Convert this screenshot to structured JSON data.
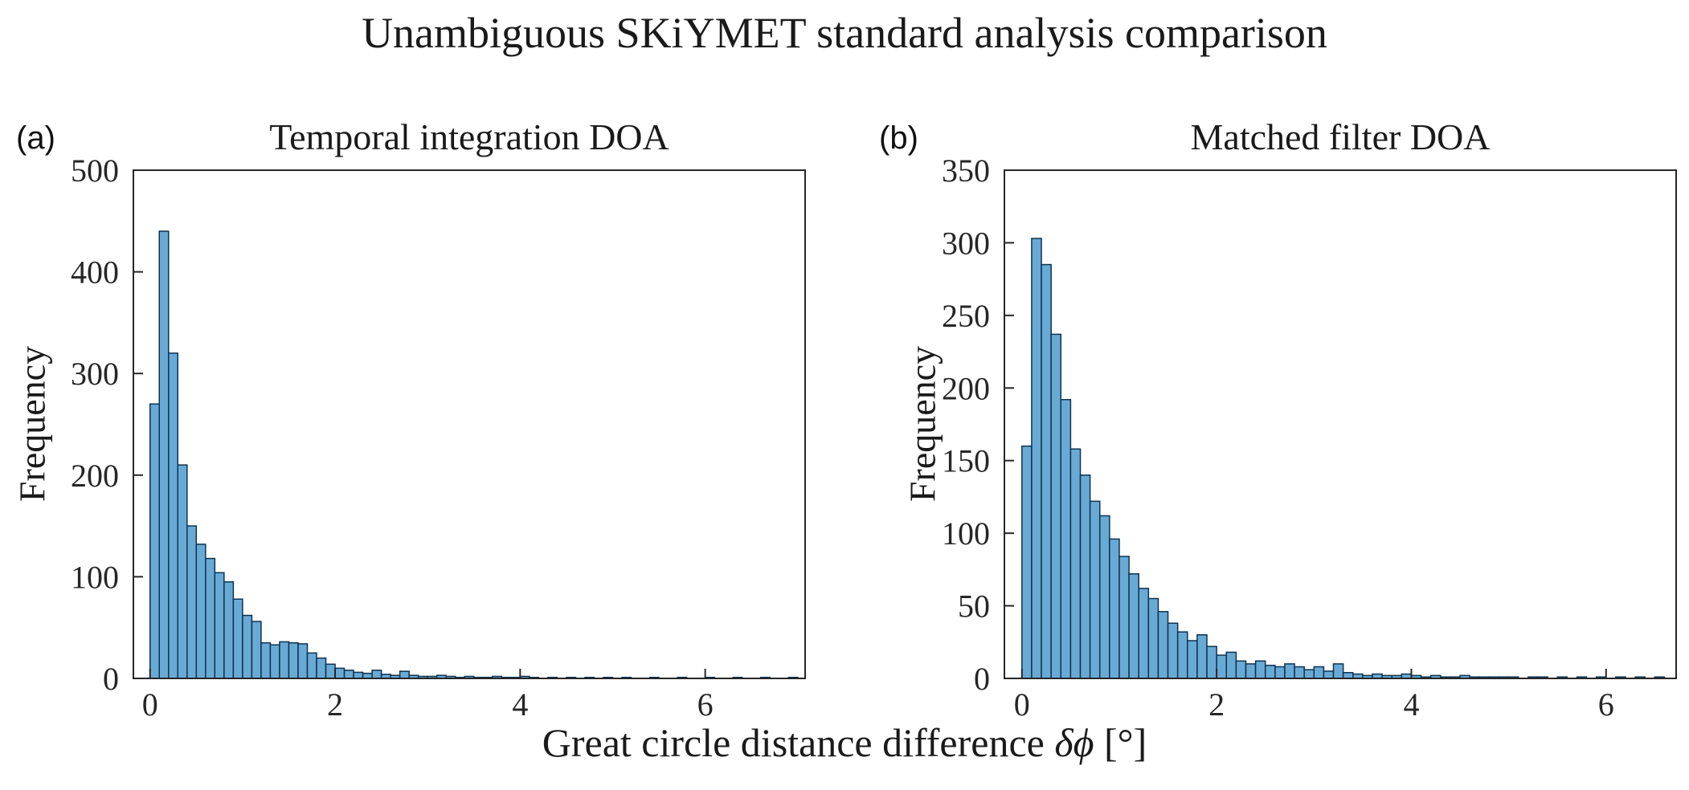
{
  "figure": {
    "title": "Unambiguous SKiYMET standard analysis comparison",
    "xlabel": {
      "prefix": "Great circle distance difference ",
      "math": "δϕ",
      "suffix": " [°]"
    },
    "background_color": "#ffffff",
    "text_color": "#262626"
  },
  "chart_data": [
    {
      "type": "bar",
      "chart_kind": "histogram",
      "panel_label": "(a)",
      "title": "Temporal integration DOA",
      "ylabel": "Frequency",
      "xlabel": "Great circle distance difference δϕ [°]",
      "bin_start": 0,
      "bin_width": 0.1,
      "values": [
        270,
        440,
        320,
        210,
        150,
        132,
        118,
        104,
        95,
        78,
        62,
        56,
        35,
        33,
        36,
        35,
        34,
        25,
        20,
        14,
        10,
        8,
        6,
        5,
        8,
        4,
        3,
        7,
        3,
        2,
        2,
        3,
        2,
        1,
        2,
        1,
        1,
        2,
        1,
        1,
        2,
        1,
        0,
        1,
        0,
        1,
        0,
        1,
        0,
        1,
        0,
        1,
        0,
        0,
        1,
        0,
        0,
        1,
        0,
        0,
        1,
        0,
        0,
        1,
        0,
        0,
        1,
        0,
        0,
        1
      ],
      "xlim": [
        -0.18,
        7.08
      ],
      "ylim": [
        0,
        500
      ],
      "xticks": [
        0,
        2,
        4,
        6
      ],
      "yticks": [
        0,
        100,
        200,
        300,
        400,
        500
      ],
      "grid": false,
      "bar_fill": "#69aad5",
      "bar_edge": "#0d3350",
      "axis_color": "#262626"
    },
    {
      "type": "bar",
      "chart_kind": "histogram",
      "panel_label": "(b)",
      "title": "Matched filter DOA",
      "ylabel": "Frequency",
      "xlabel": "Great circle distance difference δϕ [°]",
      "bin_start": 0,
      "bin_width": 0.1,
      "values": [
        160,
        303,
        285,
        237,
        192,
        158,
        140,
        122,
        112,
        96,
        84,
        72,
        62,
        55,
        46,
        38,
        32,
        26,
        30,
        22,
        16,
        18,
        12,
        10,
        12,
        9,
        8,
        10,
        8,
        6,
        8,
        5,
        10,
        4,
        3,
        2,
        3,
        2,
        2,
        3,
        2,
        1,
        2,
        1,
        1,
        2,
        1,
        1,
        1,
        1,
        1,
        0,
        1,
        1,
        0,
        1,
        0,
        1,
        0,
        1,
        0,
        1,
        0,
        1,
        0,
        1
      ],
      "xlim": [
        -0.18,
        6.72
      ],
      "ylim": [
        0,
        350
      ],
      "xticks": [
        0,
        2,
        4,
        6
      ],
      "yticks": [
        0,
        50,
        100,
        150,
        200,
        250,
        300,
        350
      ],
      "grid": false,
      "bar_fill": "#69aad5",
      "bar_edge": "#0d3350",
      "axis_color": "#262626"
    }
  ]
}
